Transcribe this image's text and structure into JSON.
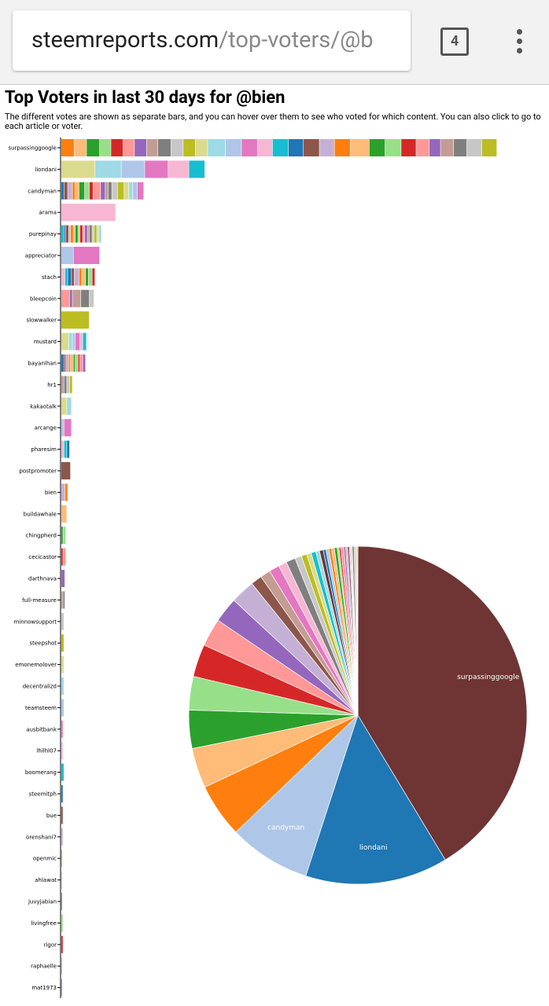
{
  "browser": {
    "url_host": "steemreports.com",
    "url_path": "/top-voters/@b",
    "tab_count": "4"
  },
  "page": {
    "title": "Top Voters in last 30 days for @bien",
    "description": "The different votes are shown as separate bars, and you can hover over them to see who voted for which content. You can also click to go to each article or voter."
  },
  "chart_data": {
    "type": "stacked-bar-pie",
    "bar_palette": [
      "#ff7f0e",
      "#ffbb78",
      "#2ca02c",
      "#98df8a",
      "#d62728",
      "#ff9896",
      "#9467bd",
      "#c49c94",
      "#7f7f7f",
      "#c7c7c7",
      "#bcbd22",
      "#dbdb8d",
      "#9edae5",
      "#aec7e8",
      "#e377c2",
      "#f7b6d2",
      "#17becf",
      "#1f77b4",
      "#8c564b",
      "#c5b0d5"
    ],
    "pie_colors": [
      "#6f3434",
      "#1f77b4",
      "#aec7e8",
      "#ff7f0e",
      "#ffbb78",
      "#2ca02c",
      "#98df8a",
      "#d62728",
      "#ff9896",
      "#9467bd",
      "#c5b0d5",
      "#8c564b",
      "#c49c94",
      "#e377c2",
      "#f7b6d2",
      "#7f7f7f",
      "#c7c7c7",
      "#bcbd22",
      "#dbdb8d",
      "#17becf",
      "#9edae5"
    ],
    "voters": [
      {
        "name": "surpassinggoogle",
        "votes": [
          14,
          13,
          14,
          12,
          13,
          12,
          13,
          12,
          14,
          13,
          13,
          13,
          19,
          17,
          17,
          16,
          17,
          16,
          17,
          16,
          17,
          20,
          17,
          17,
          16,
          14,
          12,
          14,
          14,
          16,
          16
        ]
      },
      {
        "name": "liondani",
        "votes": [
          36,
          28,
          25,
          25,
          22,
          17
        ]
      },
      {
        "name": "candyman",
        "votes": [
          3,
          4,
          5,
          3,
          4,
          6,
          5,
          4,
          8,
          5,
          3,
          4,
          6,
          7,
          5,
          4,
          5,
          7
        ]
      },
      {
        "name": "arama",
        "votes": [
          58
        ]
      },
      {
        "name": "purepinay",
        "votes": [
          3,
          2,
          3,
          2,
          3,
          2,
          3,
          2,
          3,
          2,
          3,
          2,
          3,
          2,
          3,
          2,
          3
        ]
      },
      {
        "name": "appreciator",
        "votes": [
          13,
          28
        ]
      },
      {
        "name": "stach",
        "votes": [
          4,
          3,
          4,
          3,
          5,
          3,
          4,
          3,
          4,
          3
        ]
      },
      {
        "name": "bleepcoin",
        "votes": [
          9,
          3,
          9,
          9,
          5
        ]
      },
      {
        "name": "slowwalker",
        "votes": [
          30
        ]
      },
      {
        "name": "mustard",
        "votes": [
          8,
          4,
          3,
          5,
          3,
          4
        ]
      },
      {
        "name": "bayanihan",
        "votes": [
          3,
          2,
          3,
          2,
          3,
          2,
          3,
          2,
          3,
          3
        ]
      },
      {
        "name": "hr1",
        "votes": [
          3,
          3,
          3,
          3
        ]
      },
      {
        "name": "kakaotalk",
        "votes": [
          6,
          5
        ]
      },
      {
        "name": "arcange",
        "votes": [
          3,
          8
        ]
      },
      {
        "name": "pharesim",
        "votes": [
          3,
          3,
          3
        ]
      },
      {
        "name": "postpromoter",
        "votes": [
          10
        ]
      },
      {
        "name": "bien",
        "votes": [
          4,
          3
        ]
      },
      {
        "name": "buildawhale",
        "votes": [
          6
        ]
      },
      {
        "name": "chingpherd",
        "votes": [
          2,
          3
        ]
      },
      {
        "name": "cecicastor",
        "votes": [
          2,
          3
        ]
      },
      {
        "name": "darthnava",
        "votes": [
          4
        ]
      },
      {
        "name": "full-measure",
        "votes": [
          2,
          2
        ]
      },
      {
        "name": "minnowsupport",
        "votes": [
          3
        ]
      },
      {
        "name": "steepshot",
        "votes": [
          3
        ]
      },
      {
        "name": "emonemolover",
        "votes": [
          3
        ]
      },
      {
        "name": "decentralizd",
        "votes": [
          3
        ]
      },
      {
        "name": "teamsteem",
        "votes": [
          3
        ]
      },
      {
        "name": "ausbitbank",
        "votes": [
          2
        ]
      },
      {
        "name": "lhilhl07",
        "votes": [
          2
        ]
      },
      {
        "name": "boomerang",
        "votes": [
          3
        ]
      },
      {
        "name": "steemitph",
        "votes": [
          2
        ]
      },
      {
        "name": "bue",
        "votes": [
          2
        ]
      },
      {
        "name": "orenshani7",
        "votes": [
          2
        ]
      },
      {
        "name": "openmic",
        "votes": [
          1
        ]
      },
      {
        "name": "ahlawat",
        "votes": [
          1
        ]
      },
      {
        "name": "juvyjabian",
        "votes": [
          1
        ]
      },
      {
        "name": "livingfree",
        "votes": [
          2
        ]
      },
      {
        "name": "rigor",
        "votes": [
          2
        ]
      },
      {
        "name": "raphaelle",
        "votes": [
          1
        ]
      },
      {
        "name": "mat1973",
        "votes": [
          1
        ]
      }
    ]
  }
}
